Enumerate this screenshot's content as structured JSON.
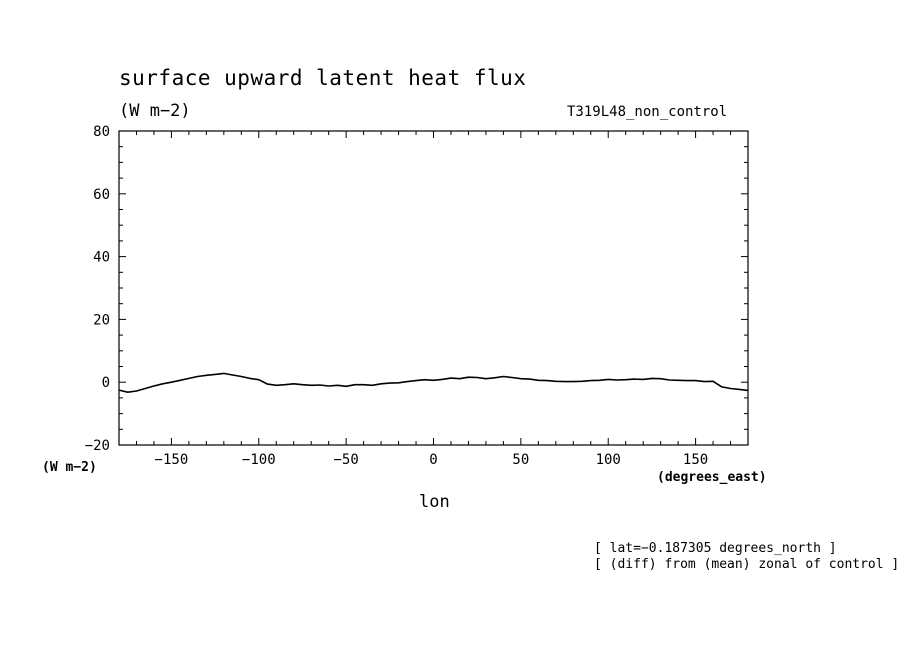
{
  "chart_data": {
    "type": "line",
    "title": "surface upward latent heat flux",
    "subtitle": "(W m−2)",
    "run_label": "T319L48_non_control",
    "xlabel": "lon",
    "x_units": "(degrees_east)",
    "y_units": "(W m−2)",
    "xlim": [
      -180,
      180
    ],
    "ylim": [
      -20,
      80
    ],
    "x_ticks": [
      -150,
      -100,
      -50,
      0,
      50,
      100,
      150
    ],
    "y_ticks": [
      -20,
      0,
      20,
      40,
      60,
      80
    ],
    "x_tick_labels": [
      "−150",
      "−100",
      "−50",
      "0",
      "50",
      "100",
      "150"
    ],
    "y_tick_labels": [
      "−20",
      "0",
      "20",
      "40",
      "60",
      "80"
    ],
    "grid": false,
    "notes": [
      "[ lat=−0.187305 degrees_north ]",
      "[ (diff) from (mean) zonal of control ]"
    ],
    "series": [
      {
        "x": [
          -180,
          -175,
          -170,
          -165,
          -160,
          -155,
          -150,
          -145,
          -140,
          -135,
          -130,
          -125,
          -120,
          -115,
          -110,
          -105,
          -100,
          -95,
          -90,
          -85,
          -80,
          -75,
          -70,
          -65,
          -60,
          -55,
          -50,
          -45,
          -40,
          -35,
          -30,
          -25,
          -20,
          -15,
          -10,
          -5,
          0,
          5,
          10,
          15,
          20,
          25,
          30,
          35,
          40,
          45,
          50,
          55,
          60,
          65,
          70,
          75,
          80,
          85,
          90,
          95,
          100,
          105,
          110,
          115,
          120,
          125,
          130,
          135,
          140,
          145,
          150,
          155,
          160,
          165,
          170,
          175,
          180
        ],
        "values": [
          -2.5,
          -3.2,
          -2.8,
          -2.0,
          -1.2,
          -0.5,
          0.0,
          0.6,
          1.2,
          1.8,
          2.2,
          2.5,
          2.8,
          2.3,
          1.8,
          1.2,
          0.8,
          -0.6,
          -1.0,
          -0.8,
          -0.5,
          -0.8,
          -1.0,
          -0.9,
          -1.2,
          -1.0,
          -1.3,
          -0.8,
          -0.8,
          -1.0,
          -0.5,
          -0.3,
          -0.2,
          0.2,
          0.5,
          0.8,
          0.6,
          0.9,
          1.3,
          1.1,
          1.6,
          1.5,
          1.1,
          1.4,
          1.8,
          1.5,
          1.1,
          1.0,
          0.6,
          0.5,
          0.3,
          0.2,
          0.2,
          0.3,
          0.5,
          0.6,
          0.9,
          0.7,
          0.8,
          1.0,
          0.9,
          1.2,
          1.1,
          0.7,
          0.6,
          0.5,
          0.5,
          0.2,
          0.3,
          -1.5,
          -2.0,
          -2.3,
          -2.6
        ]
      }
    ]
  }
}
